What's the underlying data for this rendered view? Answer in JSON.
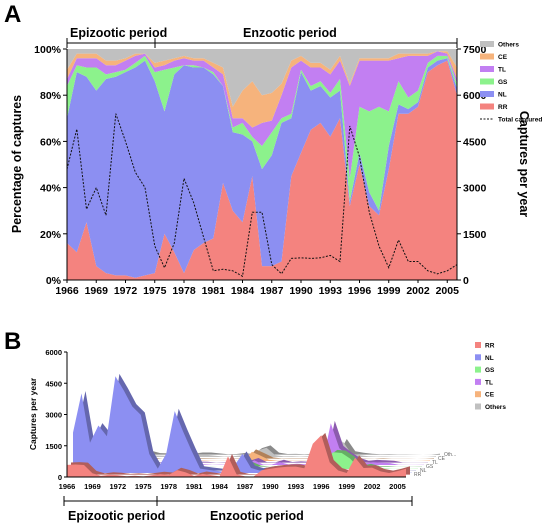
{
  "chart_data": [
    {
      "type": "area",
      "panel": "A",
      "period_labels": [
        "Epizootic period",
        "Enzootic period"
      ],
      "ylabel": "Percentage of captures",
      "y2label": "Captures per year",
      "yticks": [
        "0%",
        "20%",
        "40%",
        "60%",
        "80%",
        "100%"
      ],
      "y2ticks": [
        "0",
        "1500",
        "3000",
        "4500",
        "6000",
        "7500"
      ],
      "ylim": [
        0,
        100
      ],
      "y2lim": [
        0,
        7500
      ],
      "xlim": [
        1966,
        2006
      ],
      "xticks": [
        "1966",
        "1969",
        "1972",
        "1975",
        "1978",
        "1981",
        "1984",
        "1987",
        "1990",
        "1993",
        "1996",
        "1999",
        "2002",
        "2005"
      ],
      "x": [
        1966,
        1967,
        1968,
        1969,
        1970,
        1971,
        1972,
        1973,
        1974,
        1975,
        1976,
        1977,
        1978,
        1979,
        1980,
        1981,
        1982,
        1983,
        1984,
        1985,
        1986,
        1987,
        1988,
        1989,
        1990,
        1991,
        1992,
        1993,
        1994,
        1995,
        1996,
        1997,
        1998,
        1999,
        2000,
        2001,
        2002,
        2003,
        2004,
        2005,
        2006
      ],
      "legend": [
        "Others",
        "CE",
        "TL",
        "GS",
        "NL",
        "RR",
        "Total captured"
      ],
      "series": [
        {
          "name": "RR",
          "color": "#f4837f",
          "values": [
            16,
            12,
            25,
            6,
            3,
            2,
            2,
            1,
            2,
            3,
            20,
            12,
            3,
            13,
            16,
            18,
            42,
            30,
            25,
            45,
            6,
            6,
            8,
            45,
            55,
            65,
            68,
            62,
            70,
            32,
            50,
            32,
            28,
            48,
            72,
            72,
            75,
            90,
            93,
            95,
            80
          ]
        },
        {
          "name": "NL",
          "color": "#8c8ff2",
          "values": [
            54,
            78,
            63,
            76,
            84,
            86,
            88,
            91,
            93,
            83,
            53,
            77,
            90,
            79,
            76,
            71,
            42,
            34,
            38,
            15,
            42,
            48,
            60,
            25,
            35,
            17,
            16,
            17,
            12,
            2,
            5,
            6,
            2,
            10,
            4,
            2,
            2,
            2,
            2,
            1,
            3
          ]
        },
        {
          "name": "GS",
          "color": "#8cf28c",
          "values": [
            14,
            3,
            4,
            10,
            2,
            2,
            1,
            2,
            2,
            4,
            18,
            3,
            0,
            1,
            0,
            1,
            0,
            2,
            5,
            2,
            10,
            10,
            2,
            2,
            1,
            2,
            2,
            2,
            5,
            10,
            20,
            35,
            45,
            15,
            10,
            5,
            5,
            2,
            2,
            1,
            2
          ]
        },
        {
          "name": "TL",
          "color": "#c27ff2",
          "values": [
            3,
            3,
            4,
            4,
            4,
            3,
            4,
            3,
            1,
            2,
            2,
            3,
            3,
            2,
            3,
            2,
            5,
            4,
            2,
            4,
            10,
            5,
            10,
            20,
            4,
            8,
            6,
            8,
            8,
            40,
            20,
            22,
            20,
            22,
            10,
            18,
            15,
            3,
            2,
            1,
            2
          ]
        },
        {
          "name": "CE",
          "color": "#f6b37c",
          "values": [
            4,
            2,
            2,
            2,
            2,
            2,
            1,
            1,
            0,
            2,
            2,
            1,
            1,
            1,
            1,
            2,
            3,
            5,
            12,
            20,
            12,
            12,
            5,
            3,
            2,
            2,
            2,
            2,
            2,
            1,
            1,
            1,
            1,
            1,
            2,
            1,
            1,
            1,
            0,
            1,
            5
          ]
        },
        {
          "name": "Others",
          "color": "#c0c0c0",
          "values": [
            9,
            2,
            2,
            2,
            5,
            5,
            4,
            2,
            2,
            6,
            5,
            4,
            3,
            4,
            4,
            6,
            8,
            25,
            18,
            14,
            20,
            19,
            15,
            5,
            3,
            6,
            6,
            9,
            3,
            15,
            4,
            4,
            4,
            4,
            2,
            2,
            2,
            2,
            1,
            1,
            8
          ]
        }
      ],
      "total_captured": {
        "name": "Total captured",
        "values": [
          3600,
          4900,
          2300,
          3000,
          2100,
          5400,
          4500,
          3500,
          3000,
          1100,
          400,
          1200,
          3300,
          2500,
          1400,
          300,
          350,
          300,
          120,
          2200,
          2200,
          500,
          200,
          700,
          720,
          700,
          720,
          800,
          600,
          5000,
          4000,
          2200,
          1100,
          400,
          1300,
          600,
          600,
          300,
          200,
          300,
          500
        ]
      }
    },
    {
      "type": "area",
      "panel": "B",
      "period_labels": [
        "Epizootic period",
        "Enzootic period"
      ],
      "ylabel": "Captures per year",
      "yticks": [
        "0",
        "1500",
        "3000",
        "4500",
        "6000"
      ],
      "ylim": [
        0,
        6000
      ],
      "xlim": [
        1966,
        2006
      ],
      "xticks": [
        "1966",
        "1969",
        "1972",
        "1975",
        "1978",
        "1981",
        "1984",
        "1987",
        "1990",
        "1993",
        "1996",
        "1999",
        "2002",
        "2005"
      ],
      "legend": [
        "RR",
        "NL",
        "GS",
        "TL",
        "CE",
        "Others"
      ],
      "series_labels": [
        "RR",
        "NL",
        "GS",
        "TL",
        "CE",
        "Oth..."
      ],
      "x": [
        1966,
        1967,
        1968,
        1969,
        1970,
        1971,
        1972,
        1973,
        1974,
        1975,
        1976,
        1977,
        1978,
        1979,
        1980,
        1981,
        1982,
        1983,
        1984,
        1985,
        1986,
        1987,
        1988,
        1989,
        1990,
        1991,
        1992,
        1993,
        1994,
        1995,
        1996,
        1997,
        1998,
        1999,
        2000,
        2001,
        2002,
        2003,
        2004,
        2005,
        2006
      ],
      "series": [
        {
          "name": "RR",
          "color": "#f4837f",
          "values": [
            580,
            600,
            575,
            180,
            60,
            110,
            90,
            35,
            60,
            30,
            80,
            140,
            100,
            330,
            220,
            55,
            150,
            90,
            30,
            990,
            130,
            30,
            20,
            320,
            400,
            455,
            490,
            500,
            420,
            1600,
            2000,
            700,
            310,
            190,
            930,
            430,
            450,
            270,
            190,
            285,
            400
          ]
        },
        {
          "name": "NL",
          "color": "#8c8ff2",
          "values": [
            1940,
            3820,
            1450,
            2280,
            1760,
            4640,
            3960,
            3190,
            2790,
            910,
            210,
            920,
            2970,
            1980,
            1060,
            210,
            150,
            100,
            50,
            330,
            920,
            240,
            120,
            180,
            250,
            120,
            110,
            140,
            70,
            100,
            200,
            130,
            20,
            40,
            50,
            10,
            10,
            5,
            4,
            3,
            10
          ]
        },
        {
          "name": "GS",
          "color": "#8cf28c",
          "values": [
            500,
            150,
            90,
            300,
            40,
            100,
            40,
            70,
            60,
            40,
            70,
            40,
            0,
            25,
            0,
            3,
            0,
            5,
            5,
            40,
            220,
            50,
            4,
            14,
            7,
            14,
            14,
            16,
            30,
            500,
            800,
            770,
            500,
            60,
            130,
            30,
            30,
            6,
            4,
            3,
            10
          ]
        },
        {
          "name": "TL",
          "color": "#c27ff2",
          "values": [
            110,
            150,
            90,
            120,
            80,
            160,
            180,
            100,
            30,
            20,
            10,
            40,
            100,
            50,
            40,
            6,
            20,
            10,
            2,
            90,
            220,
            25,
            20,
            140,
            30,
            60,
            40,
            60,
            50,
            2000,
            800,
            480,
            220,
            90,
            130,
            110,
            90,
            9,
            4,
            3,
            10
          ]
        },
        {
          "name": "CE",
          "color": "#f6b37c",
          "values": [
            140,
            100,
            50,
            60,
            40,
            110,
            50,
            40,
            0,
            20,
            10,
            10,
            30,
            25,
            15,
            6,
            10,
            15,
            15,
            440,
            260,
            60,
            10,
            20,
            15,
            14,
            14,
            16,
            12,
            50,
            40,
            20,
            10,
            4,
            26,
            6,
            6,
            3,
            0,
            3,
            25
          ]
        },
        {
          "name": "Others",
          "color": "#c0c0c0",
          "values": [
            320,
            100,
            50,
            60,
            100,
            270,
            180,
            70,
            60,
            70,
            20,
            50,
            100,
            100,
            60,
            20,
            30,
            75,
            20,
            310,
            440,
            95,
            30,
            35,
            20,
            40,
            40,
            70,
            20,
            750,
            160,
            90,
            40,
            20,
            26,
            10,
            10,
            6,
            2,
            3,
            40
          ]
        }
      ]
    }
  ]
}
